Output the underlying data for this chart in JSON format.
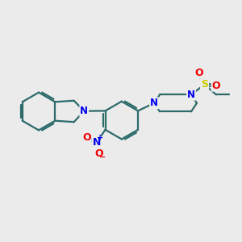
{
  "bg_color": "#ebebeb",
  "bond_color": "#2d6b6b",
  "bond_width": 1.6,
  "atom_colors": {
    "N": "#0000ee",
    "O": "#ee0000",
    "S": "#cccc00"
  },
  "fig_size": [
    3.0,
    3.0
  ],
  "dpi": 100
}
